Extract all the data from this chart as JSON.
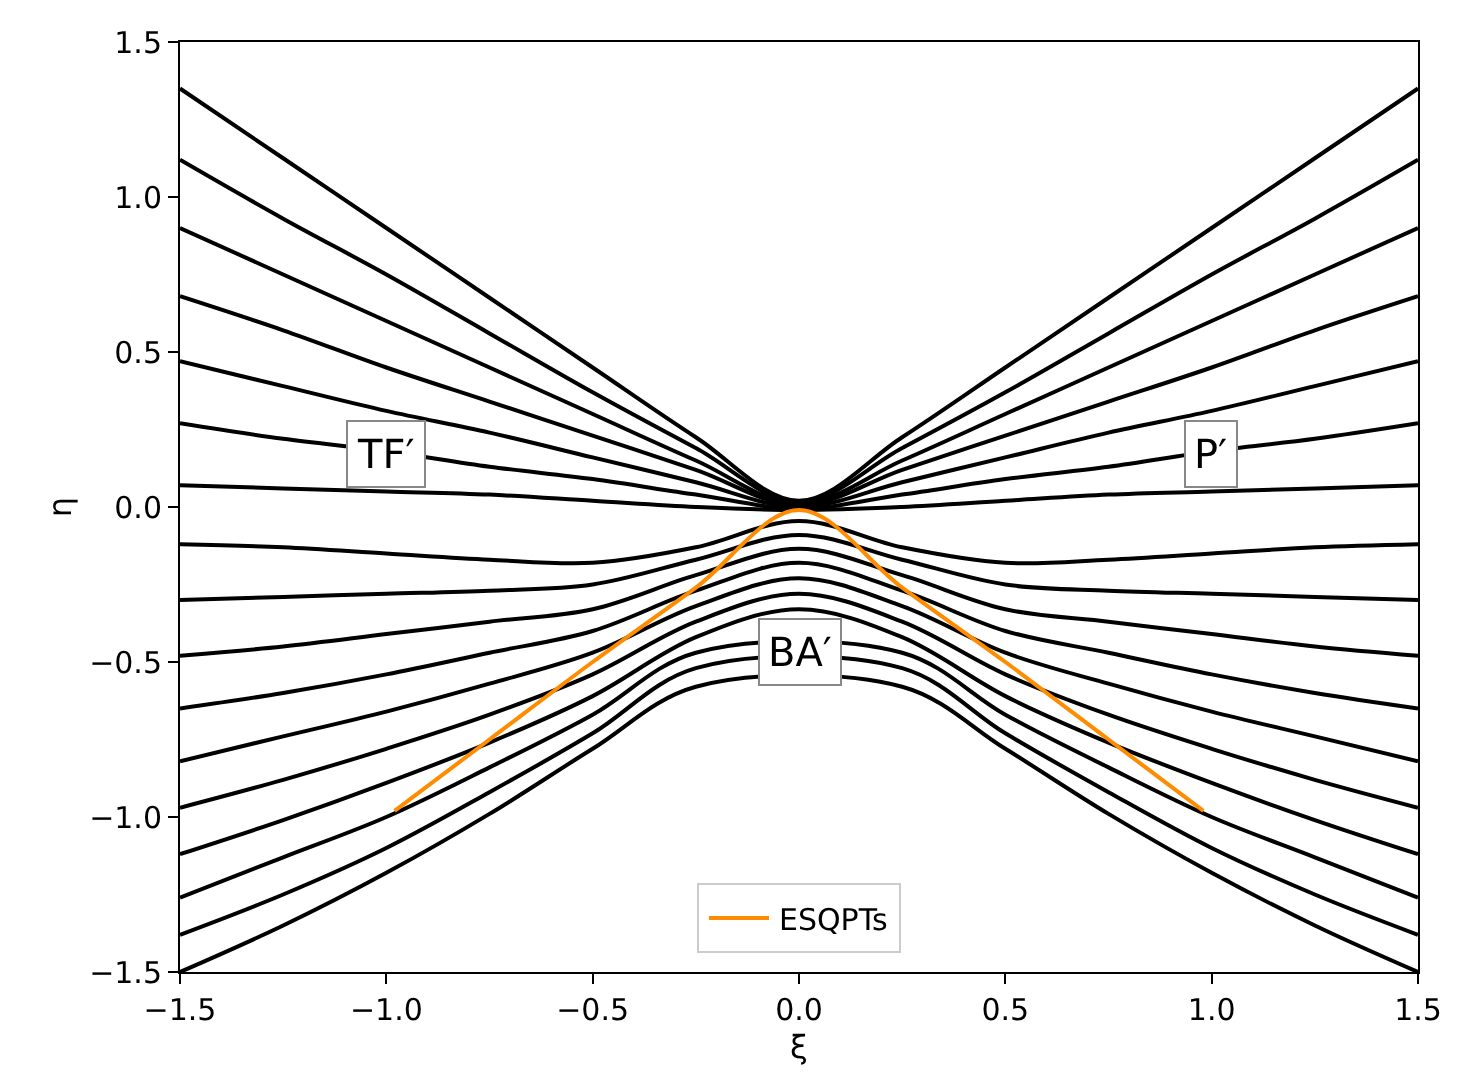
{
  "chart_data": {
    "type": "line",
    "xlabel": "ξ",
    "ylabel": "η",
    "x": [
      -1.5,
      -1.25,
      -1.0,
      -0.75,
      -0.5,
      -0.25,
      0,
      0.25,
      0.5,
      0.75,
      1.0,
      1.25,
      1.5
    ],
    "series": [
      {
        "color": "#000000",
        "values": [
          1.35,
          1.125,
          0.9,
          0.675,
          0.45,
          0.225,
          0.02,
          0.225,
          0.45,
          0.675,
          0.9,
          1.125,
          1.35
        ]
      },
      {
        "color": "#000000",
        "values": [
          1.12,
          0.93,
          0.75,
          0.56,
          0.37,
          0.19,
          0.015,
          0.19,
          0.37,
          0.56,
          0.75,
          0.93,
          1.12
        ]
      },
      {
        "color": "#000000",
        "values": [
          0.9,
          0.75,
          0.6,
          0.45,
          0.3,
          0.15,
          0.01,
          0.15,
          0.3,
          0.45,
          0.6,
          0.75,
          0.9
        ]
      },
      {
        "color": "#000000",
        "values": [
          0.68,
          0.57,
          0.45,
          0.34,
          0.23,
          0.12,
          0.005,
          0.12,
          0.23,
          0.34,
          0.45,
          0.57,
          0.68
        ]
      },
      {
        "color": "#000000",
        "values": [
          0.47,
          0.39,
          0.31,
          0.24,
          0.16,
          0.08,
          0.0,
          0.08,
          0.16,
          0.24,
          0.31,
          0.39,
          0.47
        ]
      },
      {
        "color": "#000000",
        "values": [
          0.27,
          0.22,
          0.18,
          0.13,
          0.09,
          0.04,
          -0.005,
          0.04,
          0.09,
          0.13,
          0.18,
          0.22,
          0.27
        ]
      },
      {
        "color": "#000000",
        "values": [
          0.07,
          0.06,
          0.05,
          0.04,
          0.02,
          0.0,
          -0.01,
          0.0,
          0.02,
          0.04,
          0.05,
          0.06,
          0.07
        ]
      },
      {
        "color": "#000000",
        "values": [
          -0.12,
          -0.13,
          -0.15,
          -0.17,
          -0.18,
          -0.13,
          -0.045,
          -0.13,
          -0.18,
          -0.17,
          -0.15,
          -0.13,
          -0.12
        ]
      },
      {
        "color": "#000000",
        "values": [
          -0.3,
          -0.29,
          -0.28,
          -0.27,
          -0.25,
          -0.17,
          -0.09,
          -0.17,
          -0.25,
          -0.27,
          -0.28,
          -0.29,
          -0.3
        ]
      },
      {
        "color": "#000000",
        "values": [
          -0.48,
          -0.45,
          -0.41,
          -0.37,
          -0.33,
          -0.22,
          -0.135,
          -0.22,
          -0.33,
          -0.37,
          -0.41,
          -0.45,
          -0.48
        ]
      },
      {
        "color": "#000000",
        "values": [
          -0.65,
          -0.6,
          -0.54,
          -0.47,
          -0.4,
          -0.27,
          -0.18,
          -0.27,
          -0.4,
          -0.47,
          -0.54,
          -0.6,
          -0.65
        ]
      },
      {
        "color": "#000000",
        "values": [
          -0.82,
          -0.74,
          -0.66,
          -0.57,
          -0.47,
          -0.32,
          -0.23,
          -0.32,
          -0.47,
          -0.57,
          -0.66,
          -0.74,
          -0.82
        ]
      },
      {
        "color": "#000000",
        "values": [
          -0.97,
          -0.88,
          -0.78,
          -0.67,
          -0.54,
          -0.37,
          -0.28,
          -0.37,
          -0.54,
          -0.67,
          -0.78,
          -0.88,
          -0.97
        ]
      },
      {
        "color": "#000000",
        "values": [
          -1.12,
          -1.01,
          -0.89,
          -0.76,
          -0.61,
          -0.42,
          -0.33,
          -0.42,
          -0.61,
          -0.76,
          -0.89,
          -1.01,
          -1.12
        ]
      },
      {
        "color": "#000000",
        "values": [
          -1.26,
          -1.13,
          -1.0,
          -0.84,
          -0.67,
          -0.47,
          null,
          -0.47,
          -0.67,
          -0.84,
          -1.0,
          -1.13,
          -1.26
        ]
      },
      {
        "color": "#000000",
        "values": [
          -1.38,
          -1.25,
          -1.1,
          -0.92,
          -0.73,
          -0.52,
          null,
          -0.52,
          -0.73,
          -0.92,
          -1.1,
          -1.25,
          -1.38
        ]
      },
      {
        "color": "#000000",
        "values": [
          -1.5,
          -1.35,
          -1.18,
          -0.99,
          -0.78,
          -0.58,
          null,
          -0.58,
          -0.78,
          -0.99,
          -1.18,
          -1.35,
          -1.5
        ]
      },
      {
        "name": "ESQPTs",
        "color": "#ff8c00",
        "x": [
          -0.98,
          -0.75,
          -0.5,
          -0.25,
          0,
          0.25,
          0.5,
          0.75,
          0.98
        ],
        "values": [
          -0.98,
          -0.75,
          -0.5,
          -0.26,
          -0.01,
          -0.26,
          -0.5,
          -0.75,
          -0.98
        ]
      }
    ],
    "annotations": [
      {
        "text": "TF′",
        "x": -1.0,
        "y": 0.17
      },
      {
        "text": "P′",
        "x": 1.0,
        "y": 0.17
      },
      {
        "text": "BA′",
        "x": 0.0,
        "y": -0.47
      }
    ],
    "xlim": [
      -1.5,
      1.5
    ],
    "ylim": [
      -1.5,
      1.5
    ],
    "xticks": [
      {
        "value": -1.5,
        "label": "−1.5"
      },
      {
        "value": -1.0,
        "label": "−1.0"
      },
      {
        "value": -0.5,
        "label": "−0.5"
      },
      {
        "value": 0,
        "label": "0.0"
      },
      0.5,
      {
        "value": 1.0,
        "label": "1.0"
      },
      {
        "value": 1.5,
        "label": "1.5"
      }
    ],
    "yticks": [
      {
        "value": -1.5,
        "label": "−1.5"
      },
      {
        "value": -1.0,
        "label": "−1.0"
      },
      {
        "value": -0.5,
        "label": "−0.5"
      },
      {
        "value": 0,
        "label": "0.0"
      },
      0.5,
      {
        "value": 1.0,
        "label": "1.0"
      },
      {
        "value": 1.5,
        "label": "1.5"
      }
    ],
    "legend": "bottom",
    "marker": "none",
    "line_style": "solid"
  }
}
